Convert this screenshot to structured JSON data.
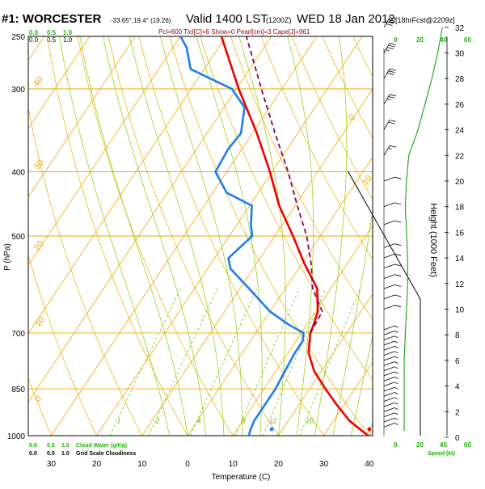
{
  "header": {
    "station": "#1: WORCESTER",
    "coords": "-33.65°,19.4° (19.26)",
    "valid": "Valid 1400 LST",
    "utc": "(1200Z)",
    "date": "WED 18 Jan 2012",
    "forecast": "[18hrFcst@2209z]",
    "parcel_line": "Pcl=600 Tlcl[C]=6 Show=0 Pearl[cm]=3 Cape[J]=961"
  },
  "top_scales": {
    "cloud_scale": [
      "0.0",
      "0.5",
      "1.0"
    ],
    "cloud_scale_labels": [
      "0.0",
      "0.5",
      "1.0"
    ],
    "speed_ticks": [
      "0",
      "20",
      "40",
      "60"
    ]
  },
  "bottom_scales": {
    "cloud_water_title": "Cloud Water (g/Kg)",
    "cloud_water_ticks": [
      "0.0",
      "0.5",
      "1.0"
    ],
    "grid_cloudiness_title": "Grid Scale Cloudiness",
    "grid_cloudiness_ticks": [
      "0.0",
      "0.5",
      "1.0"
    ],
    "speed_ticks": [
      "0",
      "20",
      "40",
      "60"
    ],
    "speed_label": "Speed (kt)"
  },
  "colors": {
    "isotherm": "#f2a800",
    "isobar": "#f2a800",
    "dry_adiabat": "#e8b000",
    "moist_adiabat": "#8fcc00",
    "mixing_ratio": "#5ab800",
    "temperature": "#ee0000",
    "dewpoint": "#1e7ee8",
    "parcel": "#880055",
    "wind_speed": "#1c9c1c",
    "scale_green": "#1cb400",
    "title_red": "#990000"
  },
  "chart_data": {
    "type": "line",
    "title": "Skew-T log-P sounding",
    "xlabel": "Temperature (C)",
    "ylabel": "P (hPa)",
    "right_ylabel": "Height (1000 Feet)",
    "pressure_ticks": [
      250,
      300,
      400,
      500,
      700,
      850,
      1000
    ],
    "pressure_tick_labels": [
      "250",
      "300",
      "400",
      "500",
      "700",
      "850",
      "1000"
    ],
    "temperature_ticks": [
      -30,
      -20,
      -10,
      0,
      10,
      20,
      30,
      40
    ],
    "temperature_tick_labels": [
      "30",
      "20",
      "10",
      "0",
      "10",
      "20",
      "30",
      "40"
    ],
    "height_ticks_kft": [
      0,
      2,
      4,
      6,
      8,
      10,
      12,
      14,
      16,
      18,
      20,
      22,
      24,
      26,
      28,
      30,
      32
    ],
    "height_tick_labels": [
      "0",
      "2",
      "4",
      "6",
      "8",
      "10",
      "12",
      "14",
      "16",
      "18",
      "20",
      "22",
      "24",
      "26",
      "28",
      "30",
      "32"
    ],
    "diagonal_isotherm_labels": [
      {
        "t": -40,
        "label": "-40"
      },
      {
        "t": -30,
        "label": "-30"
      },
      {
        "t": -20,
        "label": "-20"
      },
      {
        "t": -10,
        "label": "-10"
      },
      {
        "t": 0,
        "label": "0"
      },
      {
        "t": 10,
        "label": "10"
      },
      {
        "t": 20,
        "label": "20"
      },
      {
        "t": 30,
        "label": "30"
      },
      {
        "t": 40,
        "label": "40"
      }
    ],
    "mixing_ratio_labels": [
      "1",
      "2",
      "4",
      "8",
      "12",
      "20"
    ],
    "mixing_ratio_values": [
      1,
      2,
      4,
      8,
      12,
      20
    ],
    "series": [
      {
        "name": "Temperature",
        "p": [
          1000,
          990,
          950,
          900,
          850,
          800,
          750,
          700,
          680,
          650,
          600,
          550,
          500,
          450,
          400,
          350,
          300,
          250
        ],
        "values": [
          39.7,
          38.5,
          33.5,
          28.5,
          23.5,
          18.5,
          14.5,
          12.0,
          11.5,
          10.5,
          7.0,
          0.5,
          -6.0,
          -13.5,
          -20.5,
          -29.0,
          -39.5,
          -51.0
        ]
      },
      {
        "name": "Dewpoint",
        "p": [
          1000,
          980,
          950,
          900,
          850,
          800,
          750,
          720,
          700,
          680,
          650,
          600,
          560,
          540,
          500,
          480,
          450,
          430,
          400,
          370,
          350,
          320,
          300,
          280,
          260,
          250
        ],
        "values": [
          13.5,
          13.0,
          12.5,
          12.5,
          12.5,
          12.0,
          11.5,
          11.5,
          10.5,
          6.0,
          0.0,
          -8.0,
          -15.0,
          -17.0,
          -15.0,
          -17.0,
          -19.5,
          -27.0,
          -32.5,
          -33.0,
          -32.5,
          -35.5,
          -41.0,
          -53.0,
          -57.0,
          -60.0
        ]
      },
      {
        "name": "Parcel",
        "p": [
          700,
          650,
          600,
          550,
          500,
          450,
          400,
          350,
          300,
          250
        ],
        "values": [
          12.0,
          11.5,
          6.0,
          2.0,
          -3.0,
          -9.5,
          -16.5,
          -25.0,
          -34.5,
          -45.5
        ]
      }
    ],
    "surface_points": [
      {
        "name": "Surface temperature",
        "p": 1000,
        "t": 40.0
      },
      {
        "name": "Surface dewpoint",
        "p": 1000,
        "t": 18.5
      }
    ],
    "wind_speed_profile": {
      "name": "Wind speed",
      "height_kft": [
        0.5,
        2,
        4,
        6,
        8,
        10,
        12,
        14,
        16,
        18,
        20,
        22,
        24,
        26,
        28,
        30,
        32
      ],
      "speed_kt": [
        7,
        7,
        7,
        7,
        8,
        9,
        10,
        10,
        9,
        8,
        9,
        11,
        19,
        25,
        31,
        36,
        40
      ]
    },
    "wind_barbs": {
      "height_kft": [
        0.8,
        1.2,
        1.6,
        2.0,
        2.4,
        2.8,
        3.2,
        3.6,
        4.0,
        4.4,
        4.8,
        5.2,
        5.6,
        6.0,
        6.4,
        6.8,
        7.2,
        7.6,
        8.0,
        8.4,
        10.0,
        10.8,
        11.6,
        12.4,
        13.2,
        14.0,
        14.8,
        16.6,
        18.0,
        20.0,
        22.0,
        24.0,
        26.0,
        28.0,
        30.0,
        32.0
      ],
      "speed_kt": [
        5,
        5,
        5,
        5,
        5,
        5,
        5,
        5,
        5,
        5,
        5,
        5,
        5,
        5,
        5,
        5,
        5,
        5,
        5,
        5,
        10,
        10,
        10,
        10,
        10,
        10,
        10,
        10,
        10,
        10,
        15,
        20,
        25,
        30,
        35,
        40
      ]
    }
  }
}
